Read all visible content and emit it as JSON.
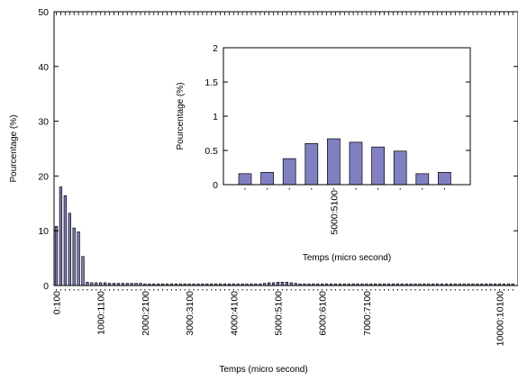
{
  "chart_data": [
    {
      "type": "bar",
      "role": "main",
      "xlabel": "Temps (micro second)",
      "ylabel": "Pourcentage (%)",
      "ylim": [
        0,
        50
      ],
      "yticks": [
        "0",
        "10",
        "20",
        "30",
        "40",
        "50"
      ],
      "xtick_labels": [
        {
          "label": "0:100",
          "index": 0
        },
        {
          "label": "1000:1100",
          "index": 10
        },
        {
          "label": "2000:2100",
          "index": 20
        },
        {
          "label": "3000:3100",
          "index": 30
        },
        {
          "label": "4000:4100",
          "index": 40
        },
        {
          "label": "5000:5100",
          "index": 50
        },
        {
          "label": "6000:6100",
          "index": 60
        },
        {
          "label": "7000:7100",
          "index": 70
        },
        {
          "label": "10000:10100",
          "index": 100
        }
      ],
      "bar_count": 104,
      "values": [
        10.8,
        18.0,
        16.4,
        13.2,
        10.5,
        9.8,
        5.3,
        0.6,
        0.5,
        0.5,
        0.5,
        0.5,
        0.4,
        0.4,
        0.4,
        0.4,
        0.4,
        0.4,
        0.4,
        0.4,
        0.3,
        0.3,
        0.3,
        0.3,
        0.3,
        0.3,
        0.3,
        0.3,
        0.3,
        0.3,
        0.3,
        0.3,
        0.3,
        0.3,
        0.3,
        0.3,
        0.3,
        0.3,
        0.3,
        0.3,
        0.3,
        0.3,
        0.3,
        0.3,
        0.3,
        0.3,
        0.3,
        0.4,
        0.5,
        0.5,
        0.6,
        0.6,
        0.6,
        0.5,
        0.4,
        0.3,
        0.3,
        0.3,
        0.3,
        0.3,
        0.3,
        0.3,
        0.3,
        0.3,
        0.3,
        0.3,
        0.3,
        0.3,
        0.3,
        0.3,
        0.3,
        0.3,
        0.3,
        0.3,
        0.3,
        0.3,
        0.3,
        0.3,
        0.3,
        0.3,
        0.3,
        0.3,
        0.3,
        0.3,
        0.3,
        0.3,
        0.3,
        0.3,
        0.3,
        0.3,
        0.3,
        0.3,
        0.3,
        0.3,
        0.3,
        0.3,
        0.3,
        0.3,
        0.3,
        0.3,
        0.3,
        0.3,
        0.3,
        0.3
      ],
      "bar_color": "#8080c0",
      "grid": false
    },
    {
      "type": "bar",
      "role": "inset",
      "xlabel": "Temps (micro second)",
      "ylabel": "Pourcentage (%)",
      "ylim": [
        0,
        2
      ],
      "yticks": [
        "0",
        "0.5",
        "1",
        "1.5",
        "2"
      ],
      "xtick_labels": [
        {
          "label": "5000:5100",
          "index": 4
        }
      ],
      "bar_count": 10,
      "values": [
        0.16,
        0.18,
        0.38,
        0.6,
        0.67,
        0.62,
        0.55,
        0.49,
        0.16,
        0.18
      ],
      "bar_color": "#8080c0",
      "grid": false
    }
  ]
}
